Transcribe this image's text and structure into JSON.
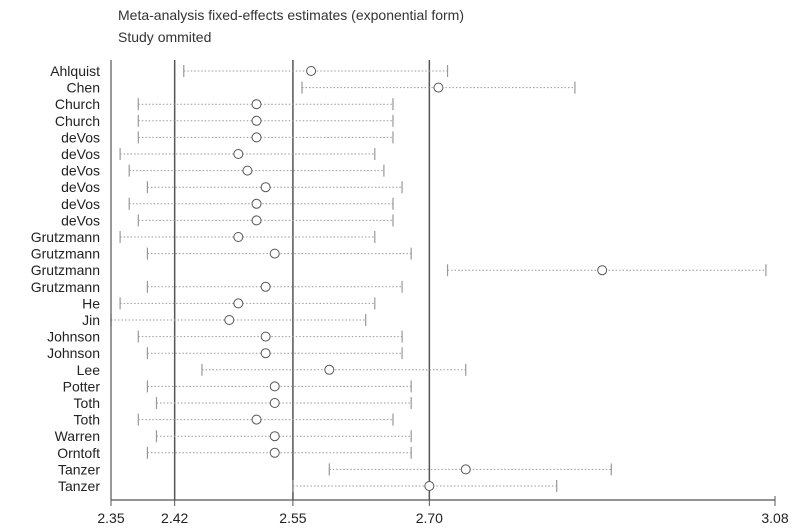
{
  "chart_data": {
    "type": "forest",
    "title": "Meta-analysis fixed-effects estimates (exponential form)",
    "subtitle": "Study ommited",
    "xlim": [
      2.35,
      3.08
    ],
    "xticks": [
      "2.35",
      "2.42",
      "2.55",
      "2.70",
      "3.08"
    ],
    "reference_lines": [
      2.42,
      2.55,
      2.7
    ],
    "studies": [
      {
        "label": "Ahlquist",
        "estimate": 2.57,
        "lower": 2.43,
        "upper": 2.72
      },
      {
        "label": "Chen",
        "estimate": 2.71,
        "lower": 2.56,
        "upper": 2.86
      },
      {
        "label": "Church",
        "estimate": 2.51,
        "lower": 2.38,
        "upper": 2.66
      },
      {
        "label": "Church",
        "estimate": 2.51,
        "lower": 2.38,
        "upper": 2.66
      },
      {
        "label": "deVos",
        "estimate": 2.51,
        "lower": 2.38,
        "upper": 2.66
      },
      {
        "label": "deVos",
        "estimate": 2.49,
        "lower": 2.36,
        "upper": 2.64
      },
      {
        "label": "deVos",
        "estimate": 2.5,
        "lower": 2.37,
        "upper": 2.65
      },
      {
        "label": "deVos",
        "estimate": 2.52,
        "lower": 2.39,
        "upper": 2.67
      },
      {
        "label": "deVos",
        "estimate": 2.51,
        "lower": 2.37,
        "upper": 2.66
      },
      {
        "label": "deVos",
        "estimate": 2.51,
        "lower": 2.38,
        "upper": 2.66
      },
      {
        "label": "Grutzmann",
        "estimate": 2.49,
        "lower": 2.36,
        "upper": 2.64
      },
      {
        "label": "Grutzmann",
        "estimate": 2.53,
        "lower": 2.39,
        "upper": 2.68
      },
      {
        "label": "Grutzmann",
        "estimate": 2.89,
        "lower": 2.72,
        "upper": 3.07
      },
      {
        "label": "Grutzmann",
        "estimate": 2.52,
        "lower": 2.39,
        "upper": 2.67
      },
      {
        "label": "He",
        "estimate": 2.49,
        "lower": 2.36,
        "upper": 2.64
      },
      {
        "label": "Jin",
        "estimate": 2.48,
        "lower": 2.35,
        "upper": 2.63
      },
      {
        "label": "Johnson",
        "estimate": 2.52,
        "lower": 2.38,
        "upper": 2.67
      },
      {
        "label": "Johnson",
        "estimate": 2.52,
        "lower": 2.39,
        "upper": 2.67
      },
      {
        "label": "Lee",
        "estimate": 2.59,
        "lower": 2.45,
        "upper": 2.74
      },
      {
        "label": "Potter",
        "estimate": 2.53,
        "lower": 2.39,
        "upper": 2.68
      },
      {
        "label": "Toth",
        "estimate": 2.53,
        "lower": 2.4,
        "upper": 2.68
      },
      {
        "label": "Toth",
        "estimate": 2.51,
        "lower": 2.38,
        "upper": 2.66
      },
      {
        "label": "Warren",
        "estimate": 2.53,
        "lower": 2.4,
        "upper": 2.68
      },
      {
        "label": "Orntoft",
        "estimate": 2.53,
        "lower": 2.39,
        "upper": 2.68
      },
      {
        "label": "Tanzer",
        "estimate": 2.74,
        "lower": 2.59,
        "upper": 2.9
      },
      {
        "label": "Tanzer",
        "estimate": 2.7,
        "lower": 2.55,
        "upper": 2.84
      }
    ],
    "grid": false,
    "legend": "none",
    "colors": {
      "axis": "#555555",
      "whisker": "#999999",
      "marker": "#555555"
    }
  }
}
